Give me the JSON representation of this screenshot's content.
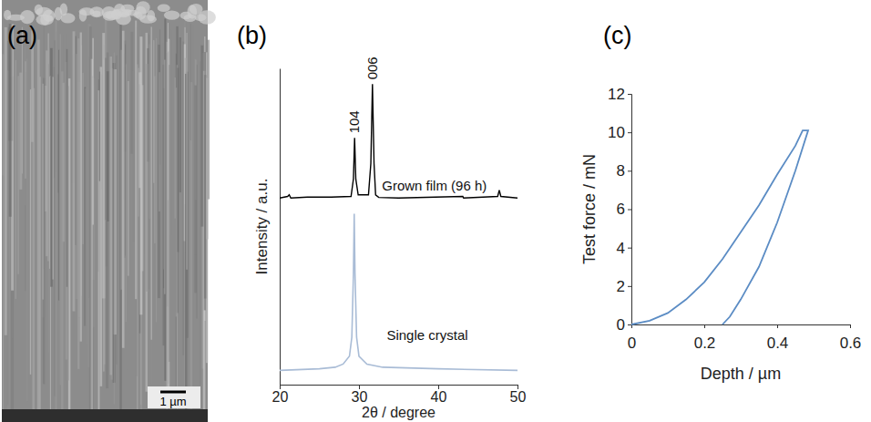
{
  "chart_data": [
    {
      "type": "image",
      "panel": "(a)",
      "scale_bar": "1 µm"
    },
    {
      "type": "line",
      "panel": "(b)",
      "x_label": "2θ / degree",
      "y_label": "Intensity / a.u.",
      "xlim": [
        20,
        50
      ],
      "xticks": [
        20,
        30,
        40,
        50
      ],
      "ylim": [
        0,
        100
      ],
      "tick_labels": "x",
      "annotations": [
        {
          "text": "104",
          "x": 29.45,
          "y": 78
        },
        {
          "text": "006",
          "x": 31.7,
          "y": 95
        }
      ],
      "series": [
        {
          "name": "Grown film (96 h)",
          "color": "#000000",
          "x": [
            20,
            21,
            21.2,
            21.4,
            23.5,
            26.5,
            29,
            29.3,
            29.45,
            29.6,
            29.9,
            31.2,
            31.5,
            31.7,
            31.9,
            32.1,
            32.5,
            35,
            43.1,
            43.2,
            47.5,
            47.7,
            47.9,
            50
          ],
          "values": [
            59,
            59.5,
            60,
            59,
            59.3,
            59.3,
            59.5,
            65,
            78,
            65,
            60,
            60,
            70,
            95,
            70,
            60,
            59.2,
            59,
            59.5,
            59,
            59.5,
            61.5,
            59.5,
            59
          ]
        },
        {
          "name": "Single crystal",
          "color": "#a9bcd6",
          "x": [
            20,
            25,
            27,
            28,
            28.8,
            29.1,
            29.3,
            29.4,
            29.5,
            29.7,
            30,
            31,
            33,
            40,
            50
          ],
          "values": [
            4.5,
            5,
            5.5,
            6.5,
            9,
            15,
            35,
            54,
            35,
            15,
            9,
            6.5,
            5.5,
            5,
            4.5
          ]
        }
      ]
    },
    {
      "type": "line",
      "panel": "(c)",
      "x_label": "Depth / µm",
      "y_label": "Test force / mN",
      "xlim": [
        0,
        0.6
      ],
      "xticks": [
        0,
        0.2,
        0.4,
        0.6
      ],
      "ylim": [
        0,
        12
      ],
      "yticks": [
        0,
        2,
        4,
        6,
        8,
        10,
        12
      ],
      "color": "#5b8cc4",
      "x": [
        0,
        0.05,
        0.1,
        0.15,
        0.2,
        0.25,
        0.3,
        0.35,
        0.4,
        0.45,
        0.47,
        0.485,
        0.485,
        0.45,
        0.4,
        0.35,
        0.3,
        0.27,
        0.25
      ],
      "values": [
        0,
        0.2,
        0.6,
        1.3,
        2.2,
        3.4,
        4.8,
        6.2,
        7.8,
        9.3,
        10.1,
        10.1,
        10.1,
        8.0,
        5.3,
        3.0,
        1.3,
        0.4,
        0
      ]
    }
  ]
}
